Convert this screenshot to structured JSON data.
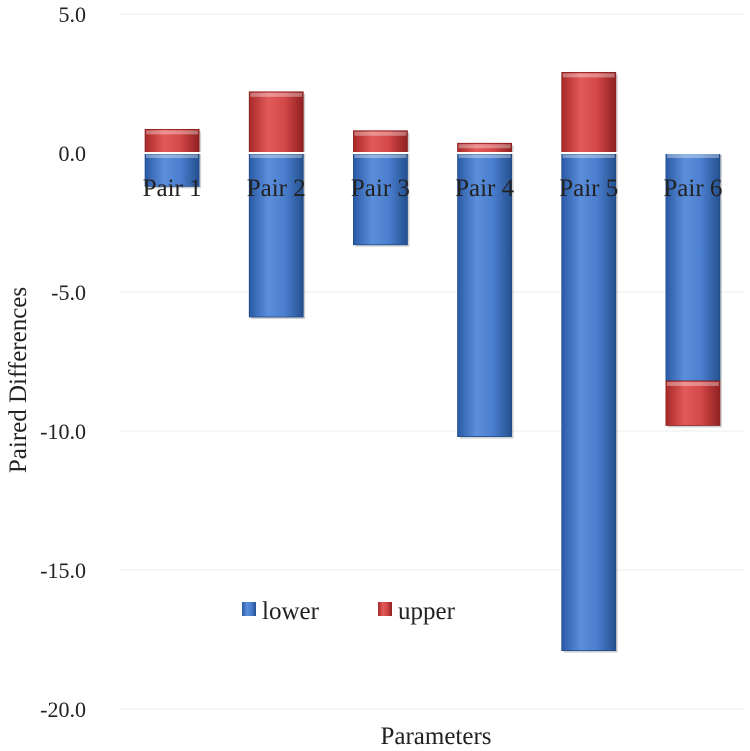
{
  "chart_data": {
    "type": "bar",
    "stacked": true,
    "categories": [
      "Pair 1",
      "Pair 2",
      "Pair 3",
      "Pair 4",
      "Pair 5",
      "Pair 6"
    ],
    "series": [
      {
        "name": "lower",
        "color": "#3d72c4",
        "values": [
          -1.2,
          -5.9,
          -3.3,
          -10.2,
          -17.9,
          -8.2
        ]
      },
      {
        "name": "upper",
        "color": "#cc3a3a",
        "values": [
          0.85,
          2.2,
          0.8,
          0.35,
          2.9,
          -1.6
        ]
      }
    ],
    "title": "",
    "xlabel": "Parameters",
    "ylabel": "Paired Differences",
    "ylim": [
      -20,
      5
    ],
    "yticks": [
      "5.0",
      "0.0",
      "-5.0",
      "-10.0",
      "-15.0",
      "-20.0"
    ],
    "grid": true,
    "legend_position": "bottom-center"
  }
}
